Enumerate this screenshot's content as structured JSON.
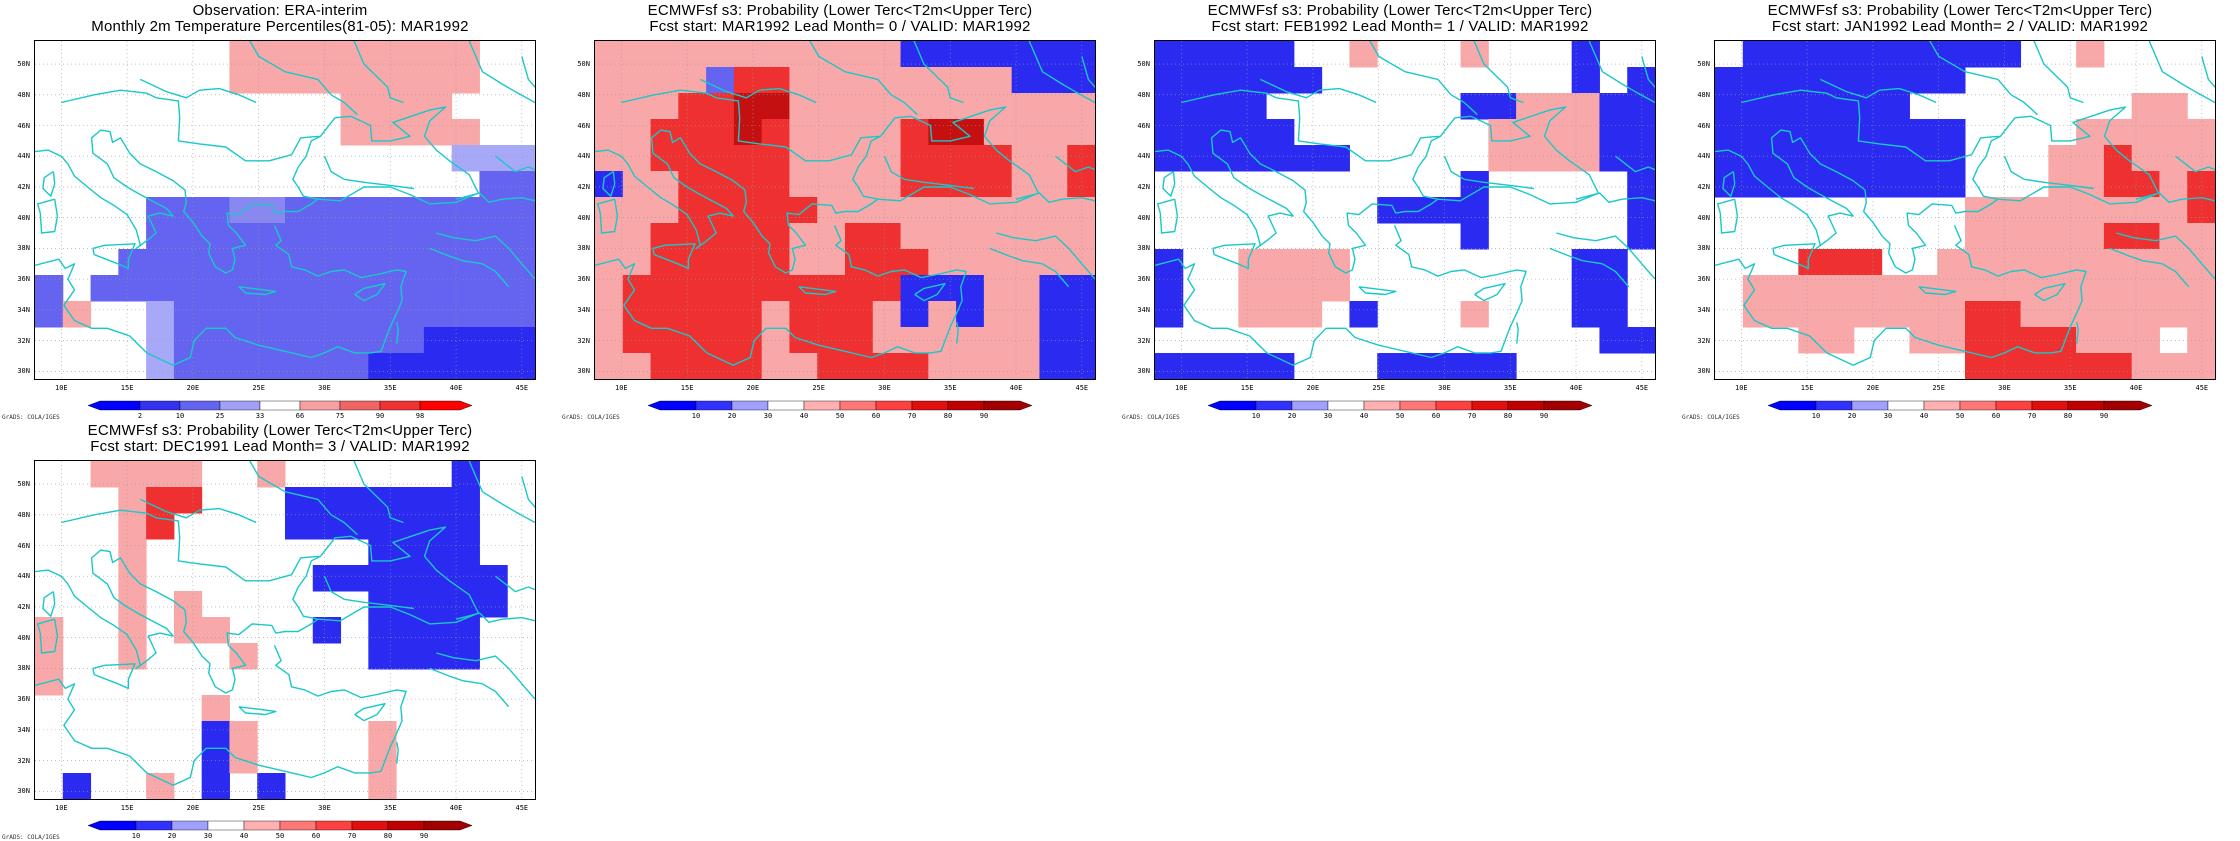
{
  "panels": [
    {
      "id": "obs",
      "title1": "Observation: ERA-interim",
      "title2": "Monthly 2m Temperature Percentiles(81-05): MAR1992",
      "colorbar_labels": [
        "2",
        "10",
        "25",
        "33",
        "66",
        "75",
        "90",
        "98"
      ],
      "colorbar_colors": [
        "#0000ff",
        "#3232f0",
        "#6464f0",
        "#a0a0f8",
        "#ffffff",
        "#f8a0a0",
        "#f06464",
        "#f03232",
        "#ff0000"
      ],
      "grid": [
        "WWWWWWWFFFFFFFFFWW",
        "WWWWWWWFFFFFFFFFWW",
        "WWWWWWWWWWWFFFFWWW",
        "WWWWWWWWWWWFFFFFWW",
        "WWWWWWWWWWWWWWWPPP",
        "WWWWWWWWWWWWWWWWMM",
        "WWWWMMMLLMMMMMMMMM",
        "WWWWMMMMMMMMMMMMMM",
        "WWWMMMMMMMMMMMMMMM",
        "MWMMMMMMMMMMMMMMMM",
        "MFWWPMMMMMMMMMMMMM",
        "WWWWPMMMMMMMMMBBBB",
        "WWWWPMMMMMMMBBBBBB"
      ]
    },
    {
      "id": "lead0",
      "title1": "ECMWFsf s3: Probability (Lower Terc<T2m<Upper Terc)",
      "title2": "Fcst start: MAR1992  Lead Month= 0 / VALID: MAR1992",
      "colorbar_labels": [
        "10",
        "20",
        "30",
        "40",
        "50",
        "60",
        "70",
        "80",
        "90"
      ],
      "colorbar_colors": [
        "#0000ff",
        "#3232ff",
        "#a0a0ff",
        "#ffffff",
        "#ffb0b0",
        "#ff7878",
        "#ff4040",
        "#e01010",
        "#c00000",
        "#a00000"
      ],
      "grid": [
        "FFFFFFFFFFFBBBBBBB",
        "FFFFMRRFFFFFFFFBBB",
        "FFFRRDDFFFFFFFFFFF",
        "FFRRRDRFFFFRDDFFFF",
        "FFRRRRRFFFFRRRRFFR",
        "BFFRRRRFFFFRRRRFFR",
        "FFFRRRRRFFFFFFFFFF",
        "FFRRRRRFFRRFFFFFFF",
        "FFRRRRRFFRRRFFFFFF",
        "FRRRRRRRRRRBBBFFBB",
        "FRRRRRFRRRFBFBFFBB",
        "FRRRRRFRRRFFFFFFBB",
        "FFRRRRFFRRRRFFFFBB"
      ]
    },
    {
      "id": "lead1",
      "title1": "ECMWFsf s3: Probability (Lower Terc<T2m<Upper Terc)",
      "title2": "Fcst start: FEB1992  Lead Month= 1 / VALID: MAR1992",
      "colorbar_labels": [
        "10",
        "20",
        "30",
        "40",
        "50",
        "60",
        "70",
        "80",
        "90"
      ],
      "colorbar_colors": [
        "#0000ff",
        "#3232ff",
        "#a0a0ff",
        "#ffffff",
        "#ffb0b0",
        "#ff7878",
        "#ff4040",
        "#e01010",
        "#c00000",
        "#a00000"
      ],
      "grid": [
        "BBBBBWWFWWWFWWWBWW",
        "BBBBBBWWWWWWWWWBWB",
        "BBBBWWWWWWWBBFFFBB",
        "BBBBBWWWWWWWFFFFBB",
        "BBBBBBBWWWWWFFFFBB",
        "WWWWWWWWWWWBWWWWWB",
        "WWWWWWWWBBBBWWWWWB",
        "WWWWWWWWWWWBWWWWWB",
        "BWWFFFFWWWWWWWWBBW",
        "BWWFFFFWWWWWWWWBBW",
        "BWWFFFWBWWWFWWWBBW",
        "WWWWWWWWWWWWWWWWBB",
        "BBBBBWWWBBBBBWWWWW"
      ]
    },
    {
      "id": "lead2",
      "title1": "ECMWFsf s3: Probability (Lower Terc<T2m<Upper Terc)",
      "title2": "Fcst start: JAN1992  Lead Month= 2 / VALID: MAR1992",
      "colorbar_labels": [
        "10",
        "20",
        "30",
        "40",
        "50",
        "60",
        "70",
        "80",
        "90"
      ],
      "colorbar_colors": [
        "#0000ff",
        "#3232ff",
        "#a0a0ff",
        "#ffffff",
        "#ffb0b0",
        "#ff7878",
        "#ff4040",
        "#e01010",
        "#c00000",
        "#a00000"
      ],
      "grid": [
        "WBBBBBBBBBBWWFWWWW",
        "BBBBBBBBBWWWWWWWWW",
        "BBBBBBBWWWWWWWWFFW",
        "BBBBBBBBBWWWWFFFFF",
        "BBBBBBBBBWWWFFRFFF",
        "BBBBBBBBBWWWFFRRFR",
        "WWWWWWWWWFFFFFFFFR",
        "WWWWWWWWWFFFFFRRFF",
        "WWWRRRWWFFFFFFFFFF",
        "WFFFFFFFFFFFFFFFFF",
        "WFFFFFFFFRRFFFFFFF",
        "WWWFFWWFFRRRRFFFWF",
        "WWWWWWWWWRRRRRRFFF"
      ]
    },
    {
      "id": "lead3",
      "title1": "ECMWFsf s3: Probability (Lower Terc<T2m<Upper Terc)",
      "title2": "Fcst start: DEC1991  Lead Month= 3 / VALID: MAR1992",
      "colorbar_labels": [
        "10",
        "20",
        "30",
        "40",
        "50",
        "60",
        "70",
        "80",
        "90"
      ],
      "colorbar_colors": [
        "#0000ff",
        "#3232ff",
        "#a0a0ff",
        "#ffffff",
        "#ffb0b0",
        "#ff7878",
        "#ff4040",
        "#e01010",
        "#c00000",
        "#a00000"
      ],
      "grid": [
        "WWFFFFWWFWWWWWWBWW",
        "WWWFRRWWWBBBBBBBWW",
        "WWWFRWWWWBBBBBBBWW",
        "WWWFWWWWWWWWBBBBWW",
        "WWWFWWWWWWBBBBBBBW",
        "WWWFWFWWWWWWBBBBBW",
        "FWWFWFFWWWBWBBBBWW",
        "FWWFWWWFWWWWBBBBWW",
        "FWWWWWWWWWWWWWWWWW",
        "WWWWWWFWWWWWWWWWWW",
        "WWWWWWBFWWWWFWWWWW",
        "WWWWWWBFWWWWFWWWWW",
        "WBWWFWBWBWWWFWWWWW"
      ]
    }
  ],
  "cell_colors": {
    "W": "#ffffff",
    "F": "#f8a8a8",
    "P": "#a8a8f8",
    "L": "#8888f0",
    "M": "#6464f0",
    "B": "#2a2af0",
    "R": "#ee3030",
    "D": "#c41010"
  },
  "y_labels": [
    "50N",
    "48N",
    "46N",
    "44N",
    "42N",
    "40N",
    "38N",
    "36N",
    "34N",
    "32N",
    "30N"
  ],
  "x_labels": [
    "10E",
    "15E",
    "20E",
    "25E",
    "30E",
    "35E",
    "40E",
    "45E"
  ],
  "coast_color": "#19c8c8",
  "grads_label": "GrADS: COLA/IGES"
}
